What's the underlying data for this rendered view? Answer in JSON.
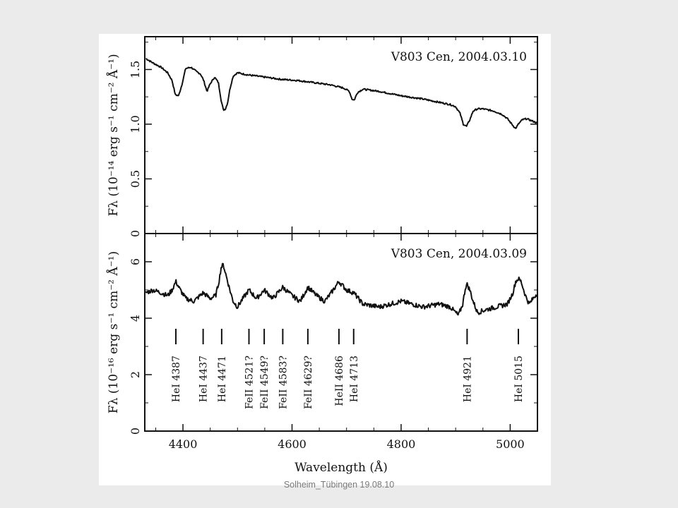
{
  "footer": "Solheim_Tübingen 19.08.10",
  "chart_data": [
    {
      "type": "line",
      "title": "V803 Cen, 2004.03.10",
      "ylabel": "Fλ (10⁻¹⁴ erg s⁻¹ cm⁻² Å⁻¹)",
      "xlim": [
        4330,
        5050
      ],
      "ylim": [
        0,
        1.8
      ],
      "yticks": [
        0,
        0.5,
        1.0,
        1.5
      ],
      "ytick_labels": [
        "0",
        "0.5",
        "1.0",
        "1.5"
      ],
      "xticks": [
        4400,
        4600,
        4800,
        5000
      ],
      "series": [
        {
          "x": [
            4332,
            4345,
            4360,
            4372,
            4380,
            4386,
            4392,
            4398,
            4405,
            4415,
            4425,
            4432,
            4438,
            4444,
            4450,
            4458,
            4465,
            4470,
            4474,
            4478,
            4482,
            4486,
            4492,
            4500,
            4520,
            4550,
            4580,
            4610,
            4640,
            4670,
            4695,
            4705,
            4710,
            4714,
            4720,
            4730,
            4760,
            4800,
            4840,
            4870,
            4890,
            4900,
            4908,
            4914,
            4920,
            4926,
            4932,
            4940,
            4950,
            4970,
            4985,
            4995,
            5003,
            5010,
            5015,
            5022,
            5030,
            5040,
            5050
          ],
          "y": [
            1.6,
            1.56,
            1.52,
            1.47,
            1.4,
            1.27,
            1.26,
            1.36,
            1.51,
            1.52,
            1.48,
            1.46,
            1.4,
            1.3,
            1.37,
            1.43,
            1.38,
            1.22,
            1.13,
            1.14,
            1.2,
            1.32,
            1.44,
            1.47,
            1.45,
            1.43,
            1.41,
            1.4,
            1.38,
            1.36,
            1.33,
            1.3,
            1.23,
            1.22,
            1.29,
            1.32,
            1.3,
            1.26,
            1.23,
            1.2,
            1.18,
            1.16,
            1.1,
            1.0,
            0.98,
            1.04,
            1.12,
            1.14,
            1.14,
            1.12,
            1.09,
            1.05,
            1.0,
            0.96,
            1.0,
            1.04,
            1.05,
            1.03,
            1.01
          ]
        }
      ]
    },
    {
      "type": "line",
      "title": "V803 Cen, 2004.03.09",
      "xlabel": "Wavelength (Å)",
      "ylabel": "Fλ (10⁻¹⁶ erg s⁻¹ cm⁻² Å⁻¹)",
      "xlim": [
        4330,
        5050
      ],
      "ylim": [
        0,
        7
      ],
      "yticks": [
        0,
        2,
        4,
        6
      ],
      "ytick_labels": [
        "0",
        "2",
        "4",
        "6"
      ],
      "xticks": [
        4400,
        4600,
        4800,
        5000
      ],
      "xtick_labels": [
        "4400",
        "4600",
        "4800",
        "5000"
      ],
      "series": [
        {
          "x": [
            4332,
            4345,
            4360,
            4372,
            4380,
            4387,
            4395,
            4405,
            4420,
            4437,
            4450,
            4460,
            4466,
            4470,
            4474,
            4478,
            4482,
            4486,
            4492,
            4500,
            4510,
            4521,
            4535,
            4549,
            4565,
            4583,
            4600,
            4615,
            4629,
            4645,
            4660,
            4672,
            4686,
            4700,
            4713,
            4730,
            4760,
            4800,
            4840,
            4870,
            4890,
            4905,
            4913,
            4918,
            4921,
            4926,
            4932,
            4940,
            4955,
            4975,
            4995,
            5005,
            5010,
            5015,
            5020,
            5028,
            5035,
            5042,
            5050
          ],
          "y": [
            4.9,
            5.0,
            4.9,
            4.8,
            5.0,
            5.3,
            5.0,
            4.7,
            4.6,
            4.9,
            4.7,
            4.8,
            5.3,
            5.8,
            5.9,
            5.6,
            5.3,
            5.0,
            4.6,
            4.4,
            4.7,
            5.0,
            4.7,
            5.0,
            4.7,
            5.1,
            4.8,
            4.6,
            5.1,
            4.8,
            4.6,
            4.9,
            5.3,
            5.0,
            4.9,
            4.5,
            4.4,
            4.6,
            4.4,
            4.5,
            4.4,
            4.1,
            4.5,
            5.1,
            5.2,
            5.0,
            4.6,
            4.2,
            4.3,
            4.4,
            4.5,
            4.9,
            5.3,
            5.4,
            5.3,
            4.8,
            4.5,
            4.7,
            4.9
          ]
        }
      ],
      "line_identifications": [
        {
          "wavelength": 4387,
          "label": "HeI 4387"
        },
        {
          "wavelength": 4437,
          "label": "HeI 4437"
        },
        {
          "wavelength": 4471,
          "label": "HeI 4471"
        },
        {
          "wavelength": 4521,
          "label": "FeII 4521?"
        },
        {
          "wavelength": 4549,
          "label": "FeII 4549?"
        },
        {
          "wavelength": 4583,
          "label": "FeII 4583?"
        },
        {
          "wavelength": 4629,
          "label": "FeII 4629?"
        },
        {
          "wavelength": 4686,
          "label": "HeII 4686"
        },
        {
          "wavelength": 4713,
          "label": "HeI 4713"
        },
        {
          "wavelength": 4921,
          "label": "HeI 4921"
        },
        {
          "wavelength": 5015,
          "label": "HeI 5015"
        }
      ]
    }
  ]
}
